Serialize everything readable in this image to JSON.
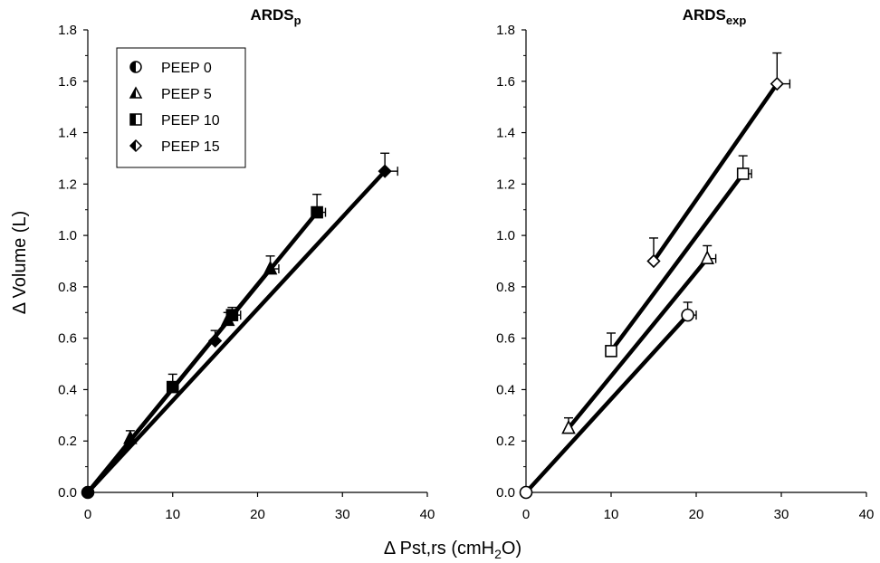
{
  "chart_data": [
    {
      "type": "scatter",
      "title": "ARDS",
      "title_subscript": "p",
      "ylabel": "Δ Volume (L)",
      "xlim": [
        0,
        40
      ],
      "ylim": [
        0,
        1.8
      ],
      "x_ticks": [
        0,
        10,
        20,
        30,
        40
      ],
      "y_ticks": [
        0.0,
        0.2,
        0.4,
        0.6,
        0.8,
        1.0,
        1.2,
        1.4,
        1.6,
        1.8
      ],
      "grid": false,
      "legend": "top-left",
      "marker_style": "filled",
      "series": [
        {
          "name": "PEEP 0",
          "marker": "circle",
          "points": [
            {
              "x": 0,
              "y": 0
            }
          ]
        },
        {
          "name": "PEEP 5",
          "marker": "triangle",
          "points": [
            {
              "x": 0,
              "y": 0
            },
            {
              "x": 5,
              "y": 0.21,
              "ey": 0.03
            },
            {
              "x": 16.5,
              "y": 0.67,
              "ey": 0.03
            },
            {
              "x": 21.5,
              "y": 0.87,
              "ey": 0.05,
              "ex": 1
            }
          ]
        },
        {
          "name": "PEEP 10",
          "marker": "square",
          "points": [
            {
              "x": 0,
              "y": 0
            },
            {
              "x": 10,
              "y": 0.41,
              "ey": 0.05
            },
            {
              "x": 17,
              "y": 0.69,
              "ey": 0.03,
              "ex": 1
            },
            {
              "x": 27,
              "y": 1.09,
              "ey": 0.07,
              "ex": 1
            }
          ]
        },
        {
          "name": "PEEP 15",
          "marker": "diamond",
          "points": [
            {
              "x": 0,
              "y": 0
            },
            {
              "x": 15,
              "y": 0.59,
              "ey": 0.04
            },
            {
              "x": 35,
              "y": 1.25,
              "ey": 0.07,
              "ex": 1.5
            }
          ]
        }
      ],
      "legend_entries": [
        {
          "label": "PEEP 0",
          "marker": "circle"
        },
        {
          "label": "PEEP 5",
          "marker": "triangle"
        },
        {
          "label": "PEEP 10",
          "marker": "square"
        },
        {
          "label": "PEEP 15",
          "marker": "diamond"
        }
      ]
    },
    {
      "type": "scatter",
      "title": "ARDS",
      "title_subscript": "exp",
      "xlim": [
        0,
        40
      ],
      "ylim": [
        0,
        1.8
      ],
      "x_ticks": [
        0,
        10,
        20,
        30,
        40
      ],
      "y_ticks": [
        0.0,
        0.2,
        0.4,
        0.6,
        0.8,
        1.0,
        1.2,
        1.4,
        1.6,
        1.8
      ],
      "grid": false,
      "marker_style": "open",
      "series": [
        {
          "name": "PEEP 0",
          "marker": "circle",
          "points": [
            {
              "x": 0,
              "y": 0
            },
            {
              "x": 19,
              "y": 0.69,
              "ey": 0.05,
              "ex": 1
            }
          ]
        },
        {
          "name": "PEEP 5",
          "marker": "triangle",
          "points": [
            {
              "x": 5,
              "y": 0.25,
              "ey": 0.04
            },
            {
              "x": 21.3,
              "y": 0.91,
              "ey": 0.05,
              "ex": 1
            }
          ]
        },
        {
          "name": "PEEP 10",
          "marker": "square",
          "points": [
            {
              "x": 10,
              "y": 0.55,
              "ey": 0.07
            },
            {
              "x": 25.5,
              "y": 1.24,
              "ey": 0.07,
              "ex": 1
            }
          ]
        },
        {
          "name": "PEEP 15",
          "marker": "diamond",
          "points": [
            {
              "x": 15,
              "y": 0.9,
              "ey": 0.09
            },
            {
              "x": 29.5,
              "y": 1.59,
              "ey": 0.12,
              "ex": 1.5
            }
          ]
        }
      ]
    }
  ],
  "shared_xlabel": {
    "main": "Δ Pst,rs (cmH",
    "sub": "2",
    "tail": "O)"
  }
}
